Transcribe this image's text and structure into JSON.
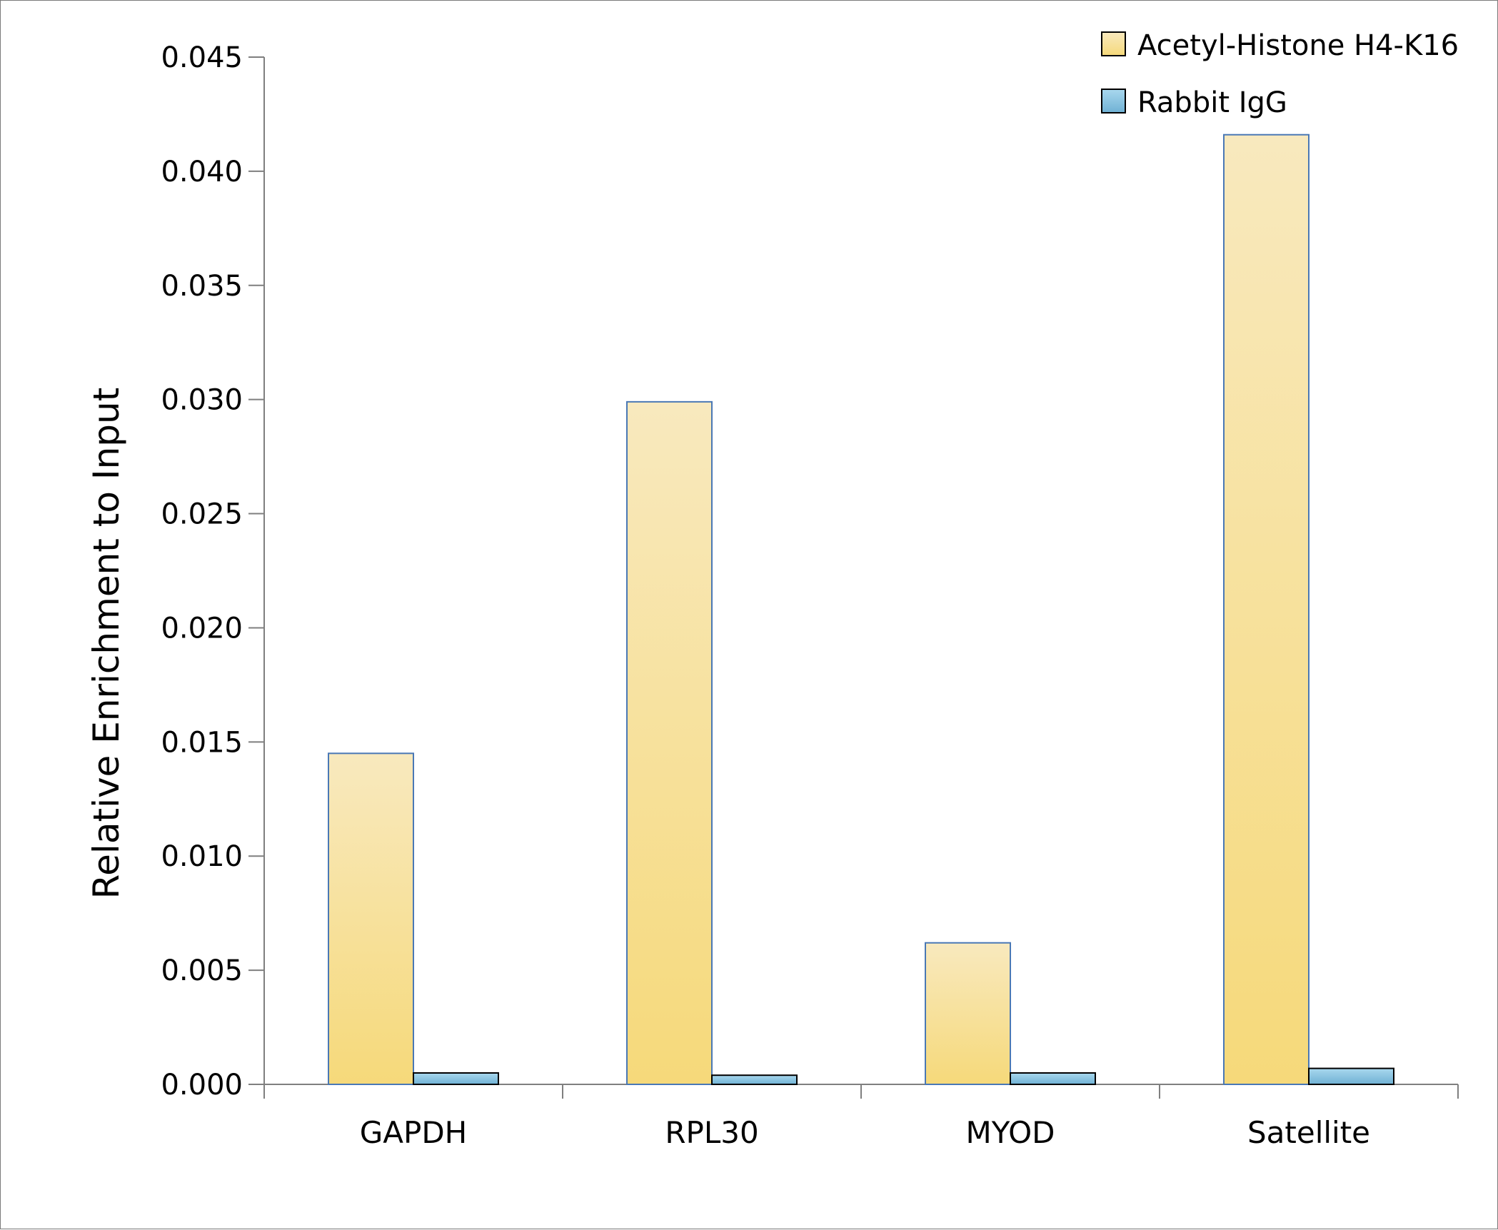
{
  "chart_data": {
    "type": "bar",
    "title": "",
    "xlabel": "",
    "ylabel": "Relative Enrichment to Input",
    "categories": [
      "GAPDH",
      "RPL30",
      "MYOD",
      "Satellite"
    ],
    "series": [
      {
        "name": "Acetyl-Histone H4-K16",
        "values": [
          0.0145,
          0.0299,
          0.0062,
          0.0416
        ],
        "color_top": "#f8e9be",
        "color_bottom": "#f6d97a",
        "stroke": "#4a78b5"
      },
      {
        "name": "Rabbit IgG",
        "values": [
          0.0005,
          0.0004,
          0.0005,
          0.0007
        ],
        "color_top": "#a9d8ee",
        "color_bottom": "#6fb1d4",
        "stroke": "#000000"
      }
    ],
    "ylim": [
      0,
      0.045
    ],
    "yticks": [
      "0.000",
      "0.005",
      "0.010",
      "0.015",
      "0.020",
      "0.025",
      "0.030",
      "0.035",
      "0.040",
      "0.045"
    ],
    "grid": false,
    "legend_position": "top-right"
  }
}
